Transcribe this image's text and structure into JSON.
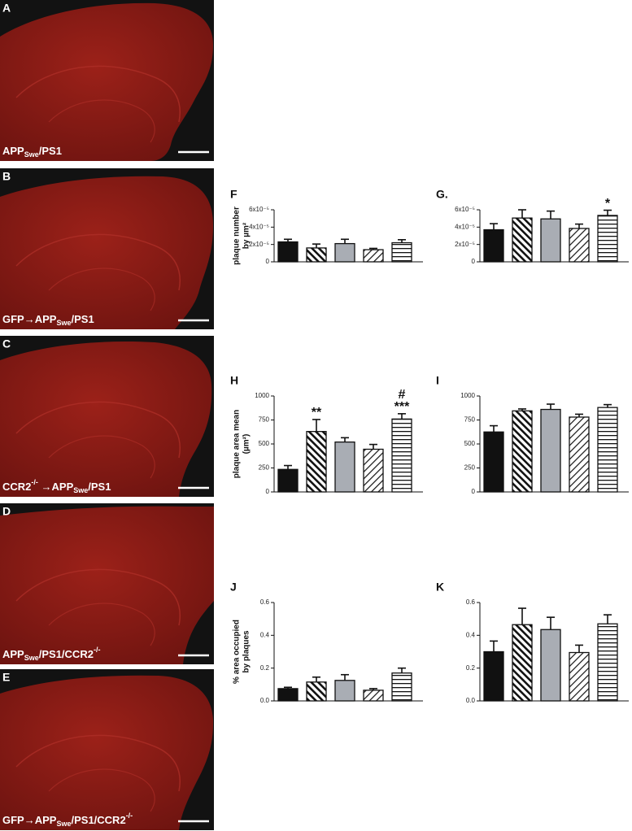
{
  "image_panels": [
    {
      "letter": "A",
      "caption": [
        {
          "text": "APP"
        },
        {
          "text": "Swe",
          "script": "sub"
        },
        {
          "text": "/PS1"
        }
      ]
    },
    {
      "letter": "B",
      "caption": [
        {
          "text": "GFP→APP"
        },
        {
          "text": "Swe",
          "script": "sub"
        },
        {
          "text": "/PS1"
        }
      ]
    },
    {
      "letter": "C",
      "caption": [
        {
          "text": "CCR2"
        },
        {
          "text": "-/-",
          "script": "sup"
        },
        {
          "text": " →APP"
        },
        {
          "text": "Swe",
          "script": "sub"
        },
        {
          "text": "/PS1"
        }
      ]
    },
    {
      "letter": "D",
      "caption": [
        {
          "text": "APP"
        },
        {
          "text": "Swe",
          "script": "sub"
        },
        {
          "text": "/PS1/CCR2"
        },
        {
          "text": "-/-",
          "script": "sup"
        }
      ]
    },
    {
      "letter": "E",
      "caption": [
        {
          "text": "GFP→APP"
        },
        {
          "text": "Swe",
          "script": "sub"
        },
        {
          "text": "/PS1/CCR2"
        },
        {
          "text": "-/-",
          "script": "sup"
        }
      ]
    }
  ],
  "bar_fills": [
    "#111111",
    "hatch-back",
    "#a9adb4",
    "hatch-fwd",
    "stripes"
  ],
  "chart_data": [
    {
      "type": "bar",
      "letter": "F",
      "ylabel": [
        "plaque number",
        "by µm²"
      ],
      "values": [
        2.3e-05,
        1.6e-05,
        2.1e-05,
        1.4e-05,
        2.2e-05
      ],
      "errors": [
        3e-06,
        4.5e-06,
        5e-06,
        1.5e-06,
        3.5e-06
      ],
      "ylim": [
        0,
        6e-05
      ],
      "yticks": [
        0,
        {
          "value": 2e-05,
          "label": "2x10⁻⁵"
        },
        {
          "value": 4e-05,
          "label": "4x10⁻⁵"
        },
        {
          "value": 6e-05,
          "label": "6x10⁻⁵"
        }
      ],
      "annotations": []
    },
    {
      "type": "bar",
      "letter": "G.",
      "values": [
        3.7e-05,
        5.05e-05,
        4.95e-05,
        3.85e-05,
        5.35e-05
      ],
      "errors": [
        7e-06,
        9.5e-06,
        9e-06,
        5e-06,
        6e-06
      ],
      "ylim": [
        0,
        6e-05
      ],
      "yticks": [
        0,
        {
          "value": 2e-05,
          "label": "2x10⁻⁵"
        },
        {
          "value": 4e-05,
          "label": "4x10⁻⁵"
        },
        {
          "value": 6e-05,
          "label": "6x10⁻⁵"
        }
      ],
      "annotations": [
        {
          "bar": 4,
          "lines": [
            "*"
          ]
        }
      ]
    },
    {
      "type": "bar",
      "letter": "H",
      "ylabel": [
        "plaque area mean",
        "(µm²)"
      ],
      "values": [
        235,
        630,
        520,
        445,
        760
      ],
      "errors": [
        40,
        125,
        45,
        50,
        55
      ],
      "ylim": [
        0,
        1000
      ],
      "yticks": [
        0,
        250,
        500,
        750,
        1000
      ],
      "annotations": [
        {
          "bar": 1,
          "lines": [
            "**"
          ]
        },
        {
          "bar": 4,
          "lines": [
            "#",
            "***"
          ]
        }
      ]
    },
    {
      "type": "bar",
      "letter": "I",
      "values": [
        625,
        845,
        860,
        780,
        880
      ],
      "errors": [
        65,
        20,
        55,
        30,
        30
      ],
      "ylim": [
        0,
        1000
      ],
      "yticks": [
        0,
        250,
        500,
        750,
        1000
      ],
      "annotations": []
    },
    {
      "type": "bar",
      "letter": "J",
      "ylabel": [
        "% area occupied",
        "by plaques"
      ],
      "values": [
        0.075,
        0.115,
        0.125,
        0.065,
        0.17
      ],
      "errors": [
        0.008,
        0.03,
        0.035,
        0.01,
        0.03
      ],
      "ylim": [
        0,
        0.6
      ],
      "yticks": [
        {
          "value": 0,
          "label": "0.0"
        },
        0.2,
        0.4,
        0.6
      ],
      "annotations": []
    },
    {
      "type": "bar",
      "letter": "K",
      "values": [
        0.3,
        0.465,
        0.435,
        0.295,
        0.47
      ],
      "errors": [
        0.065,
        0.1,
        0.075,
        0.045,
        0.055
      ],
      "ylim": [
        0,
        0.6
      ],
      "yticks": [
        {
          "value": 0,
          "label": "0.0"
        },
        0.2,
        0.4,
        0.6
      ],
      "annotations": []
    }
  ]
}
